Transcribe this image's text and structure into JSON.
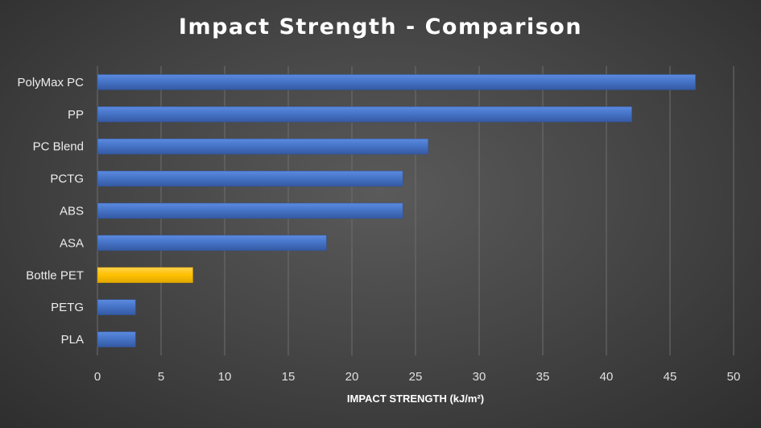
{
  "chart_data": {
    "type": "bar",
    "orientation": "horizontal",
    "title": "Impact Strength - Comparison",
    "xlabel": "IMPACT STRENGTH (kJ/m²)",
    "ylabel": "",
    "categories": [
      "PolyMax PC",
      "PP",
      "PC Blend",
      "PCTG",
      "ABS",
      "ASA",
      "Bottle PET",
      "PETG",
      "PLA"
    ],
    "values": [
      47,
      42,
      26,
      24,
      24,
      18,
      7.5,
      3,
      3
    ],
    "highlight_category": "Bottle PET",
    "xlim": [
      0,
      50
    ],
    "xticks": [
      0,
      5,
      10,
      15,
      20,
      25,
      30,
      35,
      40,
      45,
      50
    ],
    "grid": "vertical",
    "legend": "none",
    "colors": {
      "bar": "#4472c4",
      "highlight": "#ffc000",
      "background": "#474747"
    }
  }
}
